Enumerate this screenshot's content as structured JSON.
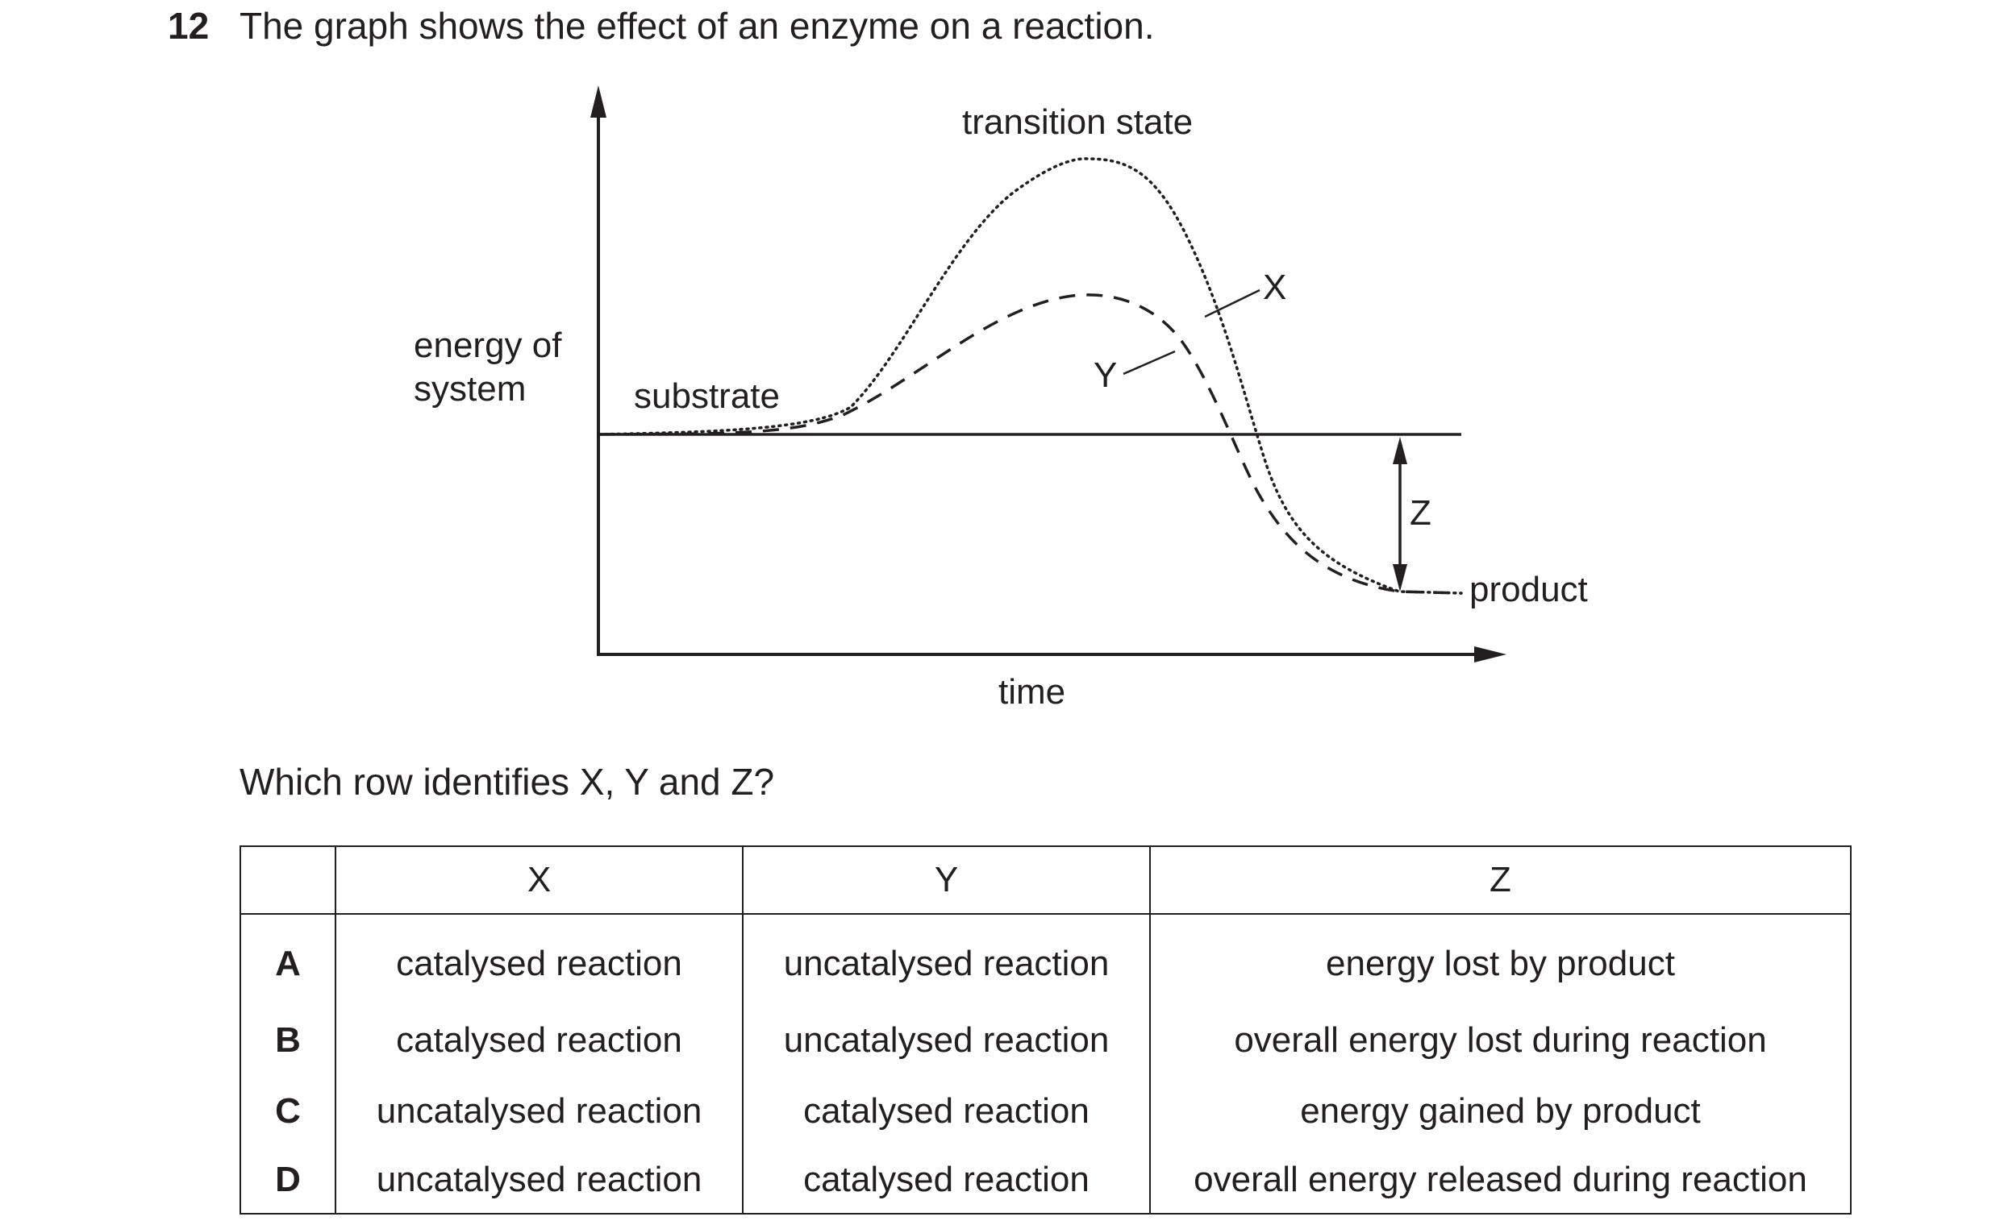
{
  "question": {
    "number": "12",
    "stem": "The graph shows the effect of an enzyme on a reaction.",
    "prompt": "Which row identifies X, Y and Z?"
  },
  "graph": {
    "y_axis_label_line1": "energy of",
    "y_axis_label_line2": "system",
    "x_axis_label": "time",
    "label_transition_state": "transition state",
    "label_substrate": "substrate",
    "label_product": "product",
    "label_x": "X",
    "label_y": "Y",
    "label_z": "Z"
  },
  "table": {
    "headers": [
      "",
      "X",
      "Y",
      "Z"
    ],
    "rows": [
      {
        "letter": "A",
        "x": "catalysed reaction",
        "y": "uncatalysed reaction",
        "z": "energy lost by product"
      },
      {
        "letter": "B",
        "x": "catalysed reaction",
        "y": "uncatalysed reaction",
        "z": "overall energy lost during reaction"
      },
      {
        "letter": "C",
        "x": "uncatalysed reaction",
        "y": "catalysed reaction",
        "z": "energy gained by product"
      },
      {
        "letter": "D",
        "x": "uncatalysed reaction",
        "y": "catalysed reaction",
        "z": "overall energy released during reaction"
      }
    ]
  }
}
